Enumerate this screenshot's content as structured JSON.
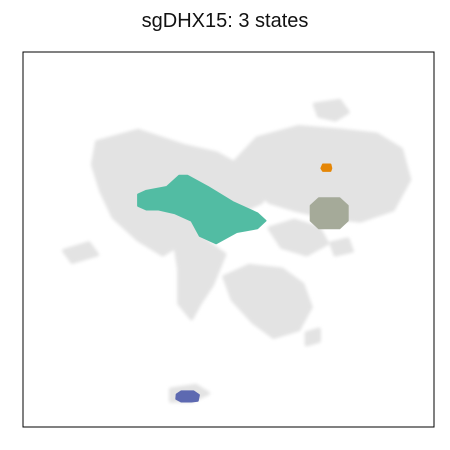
{
  "chart_data": {
    "type": "scatter",
    "title": "sgDHX15: 3 states",
    "xlabel": "",
    "ylabel": "",
    "xlim": [
      0,
      100
    ],
    "ylim": [
      0,
      100
    ],
    "grid": false,
    "legend": "none",
    "background_color": "#e3e3e3",
    "background_regions": [
      [
        [
          18,
          76
        ],
        [
          28,
          79
        ],
        [
          39,
          75
        ],
        [
          47,
          73
        ],
        [
          52,
          70
        ],
        [
          58,
          68
        ],
        [
          56,
          62
        ],
        [
          52,
          58
        ],
        [
          45,
          55
        ],
        [
          40,
          50
        ],
        [
          34,
          46
        ],
        [
          28,
          50
        ],
        [
          22,
          56
        ],
        [
          19,
          63
        ],
        [
          17,
          70
        ]
      ],
      [
        [
          47,
          68
        ],
        [
          55,
          70
        ],
        [
          61,
          66
        ],
        [
          58,
          60
        ],
        [
          52,
          57
        ]
      ],
      [
        [
          51,
          70
        ],
        [
          57,
          77
        ],
        [
          67,
          80
        ],
        [
          78,
          79
        ],
        [
          86,
          78
        ],
        [
          92,
          74
        ],
        [
          94,
          66
        ],
        [
          90,
          58
        ],
        [
          82,
          55
        ],
        [
          74,
          56
        ],
        [
          66,
          58
        ],
        [
          60,
          60
        ],
        [
          56,
          64
        ]
      ],
      [
        [
          39,
          54
        ],
        [
          44,
          50
        ],
        [
          49,
          46
        ],
        [
          46,
          38
        ],
        [
          43,
          33
        ],
        [
          41,
          29
        ],
        [
          38,
          33
        ],
        [
          38,
          42
        ],
        [
          37,
          49
        ]
      ],
      [
        [
          49,
          40
        ],
        [
          55,
          43
        ],
        [
          63,
          42
        ],
        [
          68,
          38
        ],
        [
          70,
          32
        ],
        [
          67,
          26
        ],
        [
          61,
          24
        ],
        [
          56,
          28
        ],
        [
          51,
          34
        ]
      ],
      [
        [
          60,
          53
        ],
        [
          66,
          55
        ],
        [
          72,
          53
        ],
        [
          74,
          49
        ],
        [
          69,
          46
        ],
        [
          63,
          48
        ]
      ],
      [
        [
          10,
          47
        ],
        [
          16,
          49
        ],
        [
          18,
          46
        ],
        [
          12,
          44
        ]
      ],
      [
        [
          71,
          86
        ],
        [
          77,
          87
        ],
        [
          79,
          84
        ],
        [
          76,
          82
        ],
        [
          72,
          83
        ]
      ],
      [
        [
          75,
          49
        ],
        [
          79,
          50
        ],
        [
          80,
          47
        ],
        [
          76,
          46
        ]
      ],
      [
        [
          36,
          10
        ],
        [
          42,
          11
        ],
        [
          45,
          9
        ],
        [
          41,
          7
        ],
        [
          36,
          7
        ]
      ],
      [
        [
          69,
          25
        ],
        [
          72,
          26
        ],
        [
          72,
          23
        ],
        [
          69,
          22
        ]
      ]
    ],
    "states": [
      {
        "color": "#52bca3",
        "polygon": [
          [
            30,
            63
          ],
          [
            35,
            64
          ],
          [
            38,
            67
          ],
          [
            40,
            67
          ],
          [
            45,
            64
          ],
          [
            51,
            60
          ],
          [
            57,
            57
          ],
          [
            59,
            55
          ],
          [
            57,
            53
          ],
          [
            52,
            52
          ],
          [
            47,
            49
          ],
          [
            43,
            51
          ],
          [
            41,
            55
          ],
          [
            37,
            57
          ],
          [
            33,
            58
          ],
          [
            30,
            58
          ],
          [
            28,
            59
          ],
          [
            28,
            62
          ]
        ]
      },
      {
        "color": "#a5aa99",
        "polygon": [
          [
            72,
            61
          ],
          [
            77,
            61
          ],
          [
            79,
            59
          ],
          [
            79,
            55
          ],
          [
            77,
            53
          ],
          [
            72,
            53
          ],
          [
            70,
            55
          ],
          [
            70,
            59
          ]
        ]
      },
      {
        "color": "#e58606",
        "polygon": [
          [
            73,
            70
          ],
          [
            74.8,
            70
          ],
          [
            75,
            69
          ],
          [
            74.8,
            68.3
          ],
          [
            73,
            68.3
          ],
          [
            72.6,
            69
          ]
        ]
      },
      {
        "color": "#5d69b1",
        "polygon": [
          [
            38.5,
            9.5
          ],
          [
            41.5,
            9.5
          ],
          [
            42.8,
            8.5
          ],
          [
            42.5,
            7
          ],
          [
            41,
            6.8
          ],
          [
            38.5,
            6.8
          ],
          [
            37.3,
            7.5
          ],
          [
            37.4,
            8.7
          ]
        ]
      }
    ]
  }
}
